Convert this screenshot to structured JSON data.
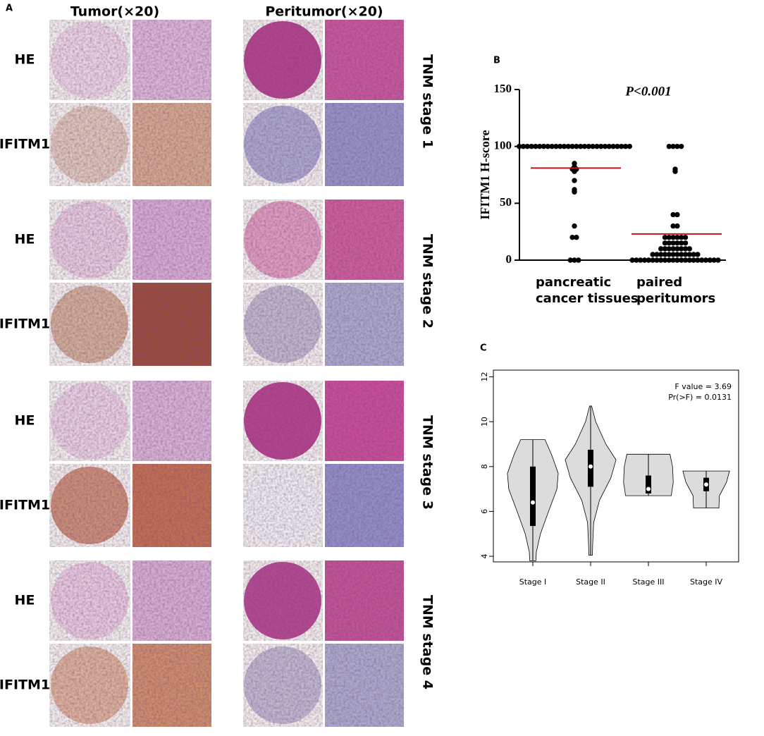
{
  "panel_a": {
    "label": "A",
    "columns": [
      "Tumor(×20)",
      "Peritumor(×20)"
    ],
    "stages": [
      {
        "rows": [
          "HE",
          "IFITM1"
        ],
        "label": "TNM stage 1"
      },
      {
        "rows": [
          "HE",
          "IFITM1"
        ],
        "label": "TNM stage 2"
      },
      {
        "rows": [
          "HE",
          "IFITM1"
        ],
        "label": "TNM stage 3"
      },
      {
        "rows": [
          "HE",
          "IFITM1"
        ],
        "label": "TNM stage 4"
      }
    ]
  },
  "chart_data": [
    {
      "type": "strip",
      "label": "B",
      "annotation": "P<0.001",
      "ylabel": "IFITM1 H-score",
      "categories": [
        [
          "pancreatic",
          "cancer tissues"
        ],
        [
          "paired",
          "peritumors"
        ]
      ],
      "values": [
        [
          100,
          100,
          100,
          100,
          100,
          100,
          100,
          100,
          100,
          100,
          100,
          100,
          100,
          100,
          100,
          100,
          100,
          100,
          100,
          100,
          100,
          100,
          100,
          100,
          100,
          100,
          100,
          100,
          85,
          82,
          80,
          80,
          78,
          70,
          62,
          60,
          30,
          20,
          20,
          0,
          0,
          0
        ],
        [
          100,
          100,
          100,
          100,
          80,
          78,
          40,
          40,
          30,
          30,
          20,
          20,
          20,
          20,
          20,
          20,
          15,
          15,
          15,
          15,
          15,
          15,
          10,
          10,
          10,
          10,
          10,
          10,
          10,
          10,
          5,
          5,
          5,
          5,
          5,
          5,
          5,
          5,
          5,
          5,
          5,
          5,
          0,
          0,
          0,
          0,
          0,
          0,
          0,
          0,
          0,
          0,
          0,
          0,
          0,
          0,
          0,
          0,
          0,
          0,
          0,
          0,
          0,
          0
        ]
      ],
      "means": [
        81,
        23
      ],
      "color": "#000000",
      "mean_color": "#c0141c",
      "ylim": [
        0,
        150
      ],
      "yticks": [
        0,
        50,
        100,
        150
      ]
    },
    {
      "type": "violin",
      "label": "C",
      "categories": [
        "Stage I",
        "Stage II",
        "Stage III",
        "Stage IV"
      ],
      "violins": [
        {
          "min": 3.8,
          "q1": 5.35,
          "median": 6.4,
          "q3": 8.0,
          "max": 9.2,
          "density_y": [
            3.8,
            4.2,
            5.0,
            6.0,
            7.0,
            7.7,
            8.5,
            9.2
          ],
          "density": [
            0.12,
            0.14,
            0.3,
            0.62,
            0.95,
            1.0,
            0.75,
            0.48
          ]
        },
        {
          "min": 4.05,
          "q1": 7.1,
          "median": 8.0,
          "q3": 8.75,
          "max": 10.7,
          "density_y": [
            4.05,
            4.5,
            5.5,
            6.5,
            7.5,
            8.3,
            9.0,
            10.0,
            10.7
          ],
          "density": [
            0.07,
            0.08,
            0.12,
            0.35,
            0.8,
            1.0,
            0.6,
            0.2,
            0.04
          ]
        },
        {
          "min": 6.7,
          "q1": 6.8,
          "median": 7.0,
          "q3": 7.6,
          "max": 8.55,
          "density_y": [
            6.7,
            7.3,
            8.0,
            8.55
          ],
          "density": [
            0.9,
            0.98,
            0.95,
            0.85
          ]
        },
        {
          "min": 6.15,
          "q1": 6.9,
          "median": 7.2,
          "q3": 7.5,
          "max": 7.8,
          "density_y": [
            6.15,
            6.7,
            7.3,
            7.8
          ],
          "density": [
            0.5,
            0.52,
            0.8,
            0.92
          ]
        }
      ],
      "annotations": [
        "F value = 3.69",
        "Pr(>F) = 0.0131"
      ],
      "color": "#dcdcdc",
      "ylim": [
        3.75,
        12.3
      ],
      "yticks": [
        4,
        6,
        8,
        10,
        12
      ]
    }
  ]
}
